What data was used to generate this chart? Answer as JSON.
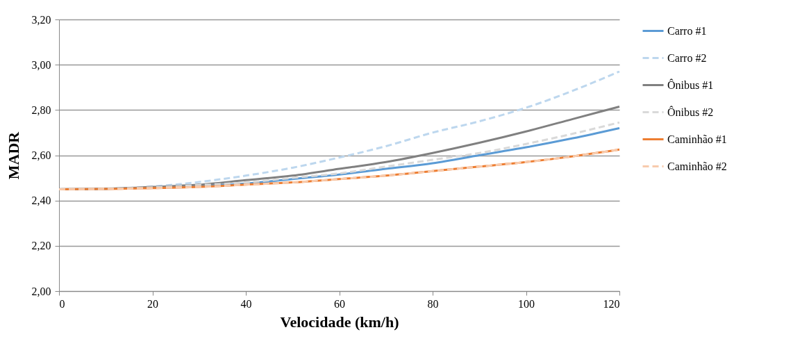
{
  "chart_data": {
    "type": "line",
    "xlabel": "Velocidade (km/h)",
    "ylabel": "MADR",
    "x": [
      0,
      10,
      20,
      30,
      40,
      50,
      60,
      70,
      80,
      90,
      100,
      110,
      120
    ],
    "xlim": [
      0,
      120
    ],
    "xticks": [
      0,
      20,
      40,
      60,
      80,
      100,
      120
    ],
    "ylim": [
      2,
      3.2
    ],
    "yticks": [
      {
        "value": 2,
        "label": "2,00"
      },
      {
        "value": 2.2,
        "label": "2,20"
      },
      {
        "value": 2.4,
        "label": "2,40"
      },
      {
        "value": 2.6,
        "label": "2,60"
      },
      {
        "value": 2.8,
        "label": "2,80"
      },
      {
        "value": 3,
        "label": "3,00"
      },
      {
        "value": 3.2,
        "label": "3,20"
      }
    ],
    "grid": "y",
    "legend": "right",
    "marker": "none",
    "series": [
      {
        "name": "Carro #1",
        "color": "#5b9bd5",
        "line_style": "solid",
        "values": [
          2.45,
          2.452,
          2.457,
          2.465,
          2.475,
          2.495,
          2.515,
          2.54,
          2.565,
          2.6,
          2.635,
          2.675,
          2.72
        ]
      },
      {
        "name": "Carro #2",
        "color": "#bdd7ee",
        "line_style": "dashed",
        "values": [
          2.45,
          2.453,
          2.462,
          2.482,
          2.51,
          2.545,
          2.59,
          2.64,
          2.7,
          2.75,
          2.81,
          2.885,
          2.97
        ]
      },
      {
        "name": "Ônibus #1",
        "color": "#808080",
        "line_style": "solid",
        "values": [
          2.45,
          2.452,
          2.46,
          2.47,
          2.49,
          2.51,
          2.54,
          2.57,
          2.61,
          2.655,
          2.705,
          2.76,
          2.815
        ]
      },
      {
        "name": "Ônibus #2",
        "color": "#d9d9d9",
        "line_style": "dashed",
        "values": [
          2.45,
          2.452,
          2.458,
          2.468,
          2.48,
          2.5,
          2.52,
          2.55,
          2.58,
          2.61,
          2.65,
          2.695,
          2.745
        ]
      },
      {
        "name": "Caminhão #1",
        "color": "#ed7d31",
        "line_style": "solid",
        "values": [
          2.45,
          2.451,
          2.455,
          2.46,
          2.47,
          2.48,
          2.495,
          2.51,
          2.53,
          2.55,
          2.57,
          2.595,
          2.625
        ]
      },
      {
        "name": "Caminhão #2",
        "color": "#f8cbad",
        "line_style": "dashed",
        "values": [
          2.45,
          2.451,
          2.455,
          2.46,
          2.47,
          2.48,
          2.495,
          2.51,
          2.53,
          2.55,
          2.57,
          2.595,
          2.625
        ]
      }
    ]
  }
}
